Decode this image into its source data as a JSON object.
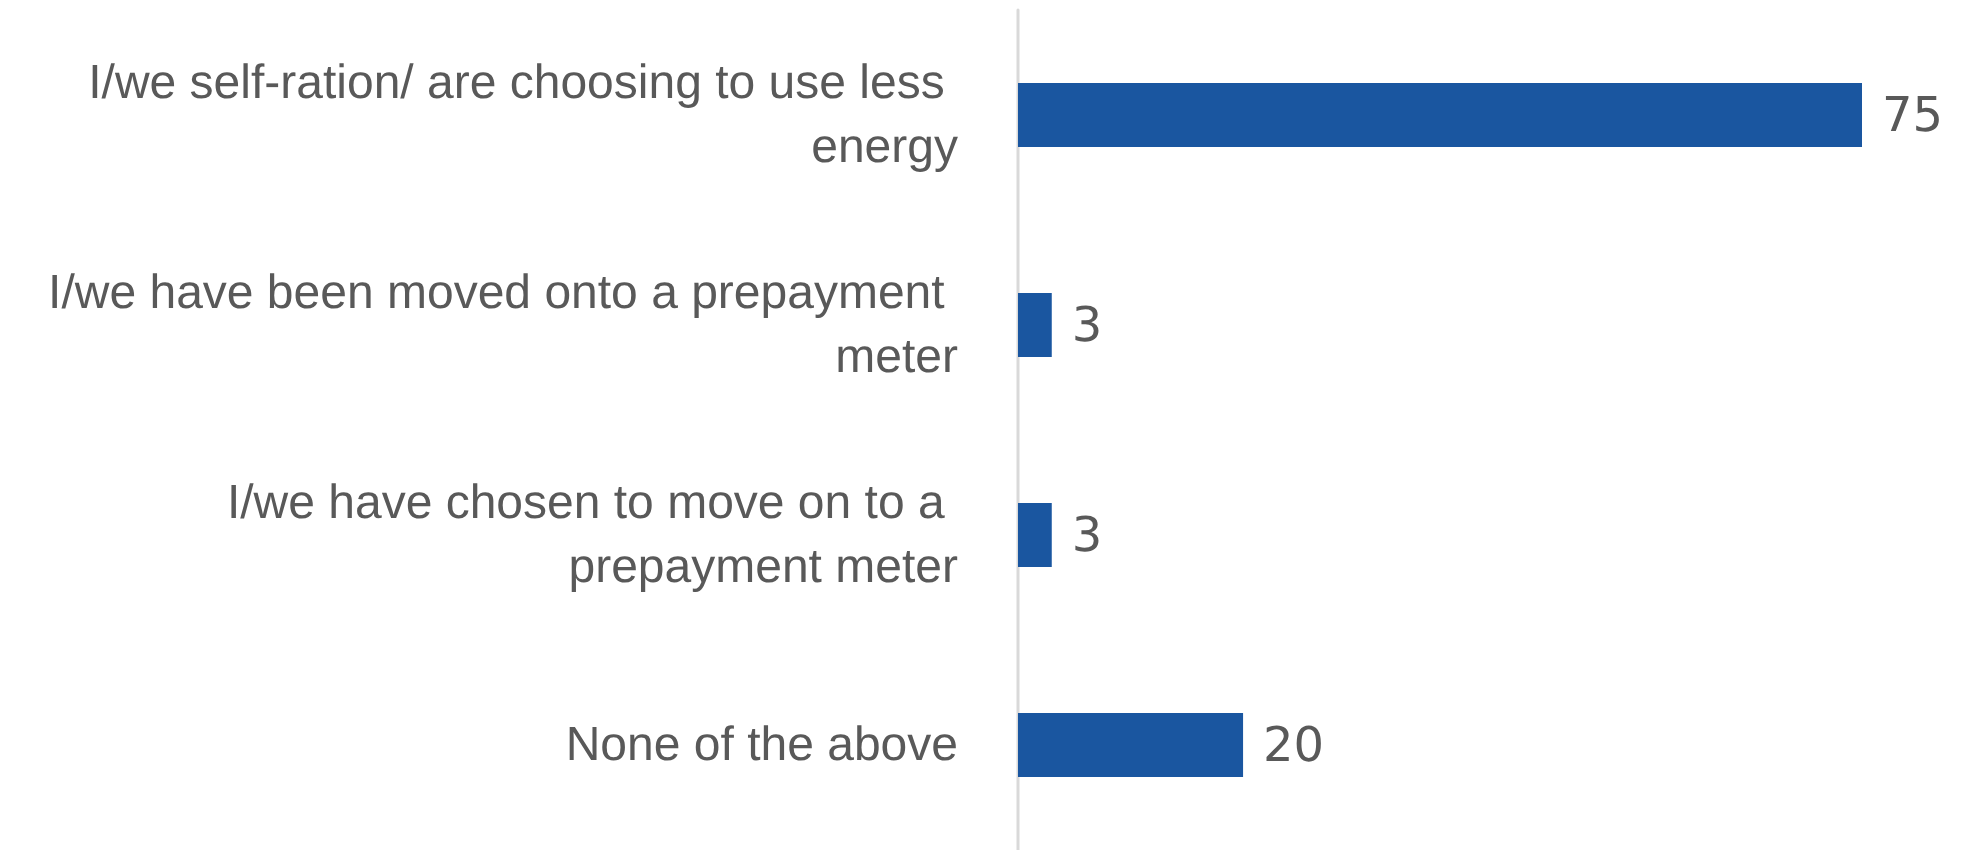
{
  "chart_data": {
    "type": "bar",
    "orientation": "horizontal",
    "categories": [
      "I/we self-ration/ are choosing to use less energy",
      "I/we have been moved onto a prepayment meter",
      "I/we have chosen to move on to a prepayment meter",
      "None of the above"
    ],
    "values": [
      75,
      3,
      3,
      20
    ],
    "color": "#1a56a0",
    "data_labels": true
  }
}
